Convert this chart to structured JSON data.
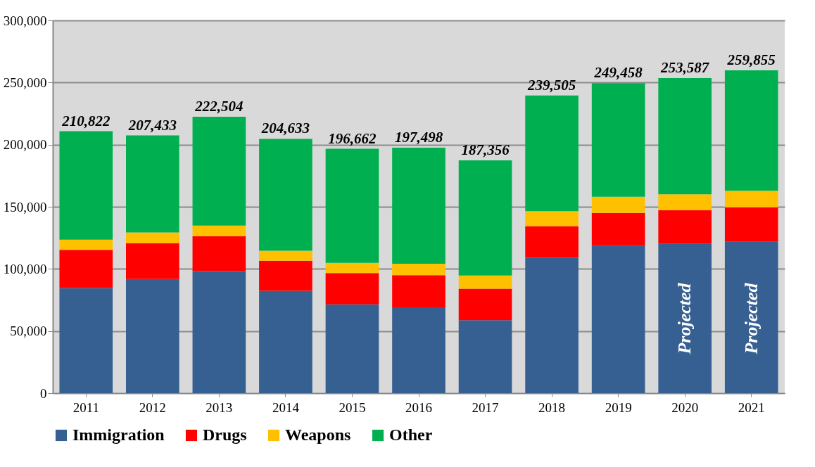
{
  "chart_data": {
    "type": "bar",
    "stacked": true,
    "categories": [
      "2011",
      "2012",
      "2013",
      "2014",
      "2015",
      "2016",
      "2017",
      "2018",
      "2019",
      "2020",
      "2021"
    ],
    "series": [
      {
        "name": "Immigration",
        "color": "#376092",
        "values": [
          84600,
          91800,
          98300,
          82400,
          71500,
          69100,
          58700,
          109000,
          118500,
          120100,
          121800
        ]
      },
      {
        "name": "Drugs",
        "color": "#ff0000",
        "values": [
          30700,
          28800,
          28000,
          24200,
          25200,
          25800,
          25400,
          25400,
          26500,
          27100,
          27800
        ]
      },
      {
        "name": "Weapons",
        "color": "#ffc000",
        "values": [
          8300,
          8700,
          8600,
          8000,
          8200,
          9300,
          10600,
          12000,
          13000,
          12900,
          13300
        ]
      },
      {
        "name": "Other",
        "color": "#00b050",
        "values": [
          87222,
          78133,
          87604,
          90033,
          91762,
          93298,
          92656,
          93105,
          91458,
          93487,
          96955
        ]
      }
    ],
    "totals": [
      "210,822",
      "207,433",
      "222,504",
      "204,633",
      "196,662",
      "197,498",
      "187,356",
      "239,505",
      "249,458",
      "253,587",
      "259,855"
    ],
    "annotations": [
      "Projected",
      "Projected"
    ],
    "ylim": [
      0,
      300000
    ],
    "yticks": [
      0,
      {
        "value": 50000,
        "label": "50,000"
      },
      {
        "value": 100000,
        "label": "100,000"
      },
      {
        "value": 150000,
        "label": "150,000"
      },
      {
        "value": 200000,
        "label": "200,000"
      },
      {
        "value": 250000,
        "label": "250,000"
      },
      {
        "value": 300000,
        "label": "300,000"
      }
    ],
    "grid": "y",
    "legend": "bottom"
  }
}
